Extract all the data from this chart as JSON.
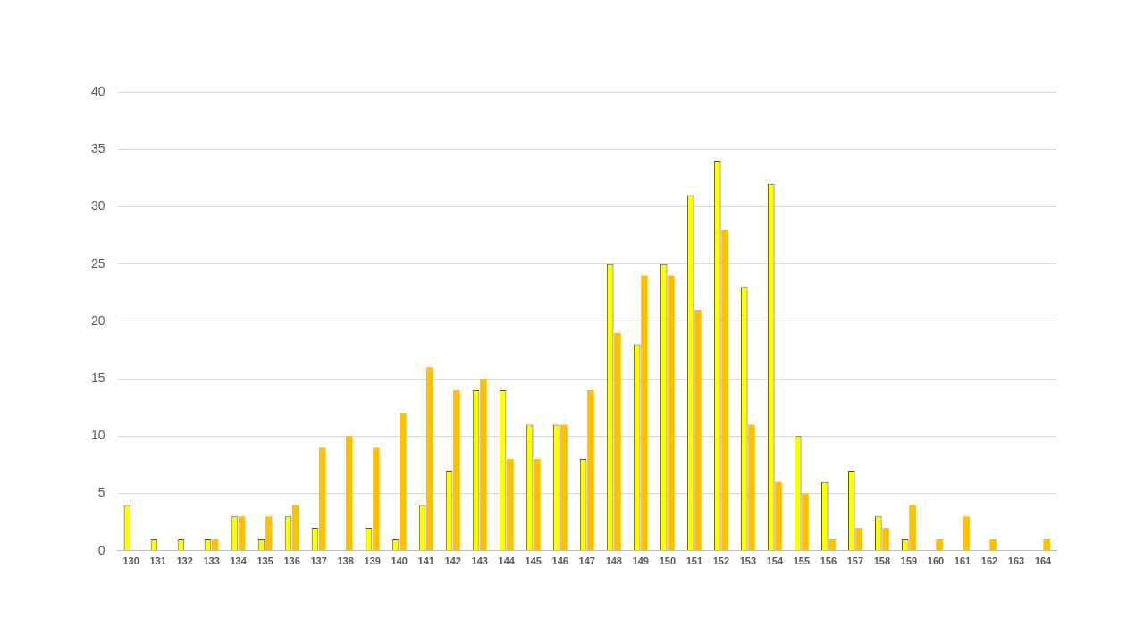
{
  "chart_data": {
    "type": "bar",
    "categories": [
      "130",
      "131",
      "132",
      "133",
      "134",
      "135",
      "136",
      "137",
      "138",
      "139",
      "140",
      "141",
      "142",
      "143",
      "144",
      "145",
      "146",
      "147",
      "148",
      "149",
      "150",
      "151",
      "152",
      "153",
      "154",
      "155",
      "156",
      "157",
      "158",
      "159",
      "160",
      "161",
      "162",
      "163",
      "164"
    ],
    "series": [
      {
        "color": "#ffff00",
        "values": [
          4,
          1,
          1,
          1,
          3,
          1,
          3,
          2,
          0,
          2,
          1,
          4,
          7,
          14,
          14,
          11,
          11,
          8,
          25,
          18,
          25,
          31,
          34,
          23,
          32,
          10,
          6,
          7,
          3,
          1,
          0,
          0,
          0,
          0,
          0
        ]
      },
      {
        "color": "#ffc000",
        "values": [
          0,
          0,
          0,
          1,
          3,
          3,
          4,
          9,
          10,
          9,
          12,
          16,
          14,
          15,
          8,
          8,
          11,
          14,
          19,
          24,
          24,
          21,
          28,
          11,
          6,
          5,
          1,
          2,
          2,
          4,
          1,
          3,
          1,
          0,
          1
        ]
      }
    ],
    "ylim": [
      0,
      40
    ],
    "yticks": [
      0,
      5,
      10,
      15,
      20,
      25,
      30,
      35,
      40
    ],
    "grid": "y",
    "legend": false
  }
}
